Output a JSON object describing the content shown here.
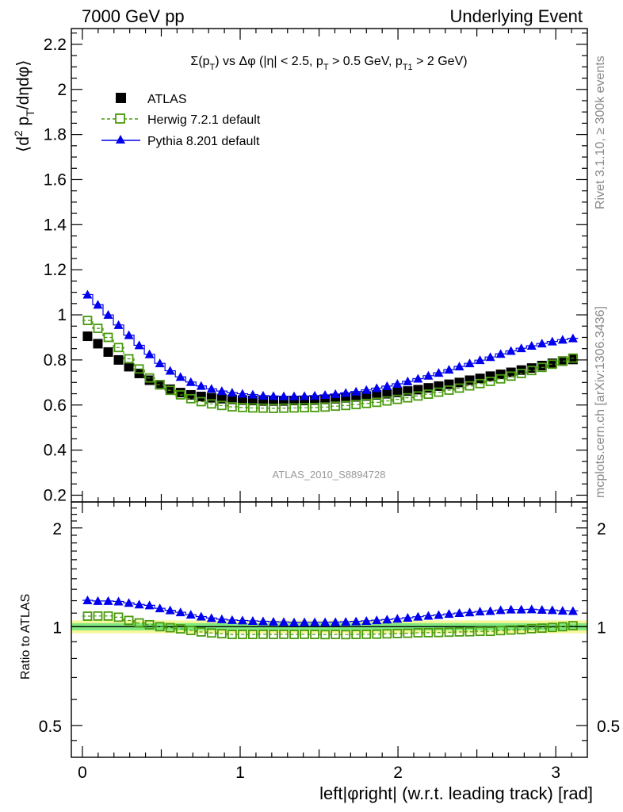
{
  "header": {
    "left": "7000 GeV pp",
    "right": "Underlying Event",
    "side_top": "Rivet 3.1.10, ≥ 300k events",
    "side_bottom": "mcplots.cern.ch [arXiv:1306.3436]",
    "analysis": "ATLAS_2010_S8894728"
  },
  "chart_data": {
    "type": "scatter",
    "title": "Σ(p_T) vs Δφ (|η| < 2.5, p_T > 0.5 GeV, p_T1 > 2 GeV)",
    "xlabel": "left|φright| (w.r.t. leading track) [rad]",
    "ylabel": "⟨d² p_T/dηdφ⟩",
    "ratio_ylabel": "Ratio to ATLAS",
    "xlim": [
      -0.07,
      3.2
    ],
    "ylim": [
      0.17,
      2.27
    ],
    "ratio_ylim": [
      0.4,
      2.4
    ],
    "ratio_log_scale": true,
    "xticks": [
      0,
      1,
      2,
      3
    ],
    "yticks": [
      0.2,
      0.4,
      0.6,
      0.8,
      1,
      1.2,
      1.4,
      1.6,
      1.8,
      2,
      2.2
    ],
    "ratio_yticks": [
      0.5,
      1,
      2
    ],
    "legend_position": "top-left",
    "ratio_band": {
      "inner": [
        0.975,
        1.025
      ],
      "outer": [
        0.955,
        1.045
      ],
      "inner_color": "#7fe87f",
      "outer_color": "#f7f79a"
    },
    "series": [
      {
        "name": "ATLAS",
        "marker": "filled-square",
        "color": "#000000",
        "x": [
          0.0327,
          0.0982,
          0.1636,
          0.2291,
          0.2945,
          0.36,
          0.4254,
          0.4909,
          0.5563,
          0.6218,
          0.6872,
          0.7527,
          0.8181,
          0.8836,
          0.949,
          1.0145,
          1.0799,
          1.1454,
          1.2108,
          1.2763,
          1.3417,
          1.4072,
          1.4726,
          1.5381,
          1.6035,
          1.669,
          1.7344,
          1.7999,
          1.8653,
          1.9308,
          1.9962,
          2.0617,
          2.1271,
          2.1926,
          2.258,
          2.3235,
          2.3889,
          2.4544,
          2.5198,
          2.5853,
          2.6507,
          2.7162,
          2.7816,
          2.8471,
          2.9125,
          2.978,
          3.0434,
          3.1089
        ],
        "y": [
          0.905,
          0.872,
          0.835,
          0.8,
          0.77,
          0.74,
          0.71,
          0.69,
          0.67,
          0.655,
          0.645,
          0.638,
          0.632,
          0.628,
          0.625,
          0.622,
          0.62,
          0.618,
          0.618,
          0.618,
          0.62,
          0.62,
          0.622,
          0.625,
          0.628,
          0.632,
          0.636,
          0.64,
          0.645,
          0.65,
          0.656,
          0.662,
          0.668,
          0.676,
          0.684,
          0.692,
          0.7,
          0.71,
          0.718,
          0.728,
          0.736,
          0.745,
          0.755,
          0.764,
          0.775,
          0.785,
          0.795,
          0.802
        ]
      },
      {
        "name": "Herwig 7.2.1 default",
        "marker": "open-square",
        "color": "#4a9a0e",
        "x": [
          0.0327,
          0.0982,
          0.1636,
          0.2291,
          0.2945,
          0.36,
          0.4254,
          0.4909,
          0.5563,
          0.6218,
          0.6872,
          0.7527,
          0.8181,
          0.8836,
          0.949,
          1.0145,
          1.0799,
          1.1454,
          1.2108,
          1.2763,
          1.3417,
          1.4072,
          1.4726,
          1.5381,
          1.6035,
          1.669,
          1.7344,
          1.7999,
          1.8653,
          1.9308,
          1.9962,
          2.0617,
          2.1271,
          2.1926,
          2.258,
          2.3235,
          2.3889,
          2.4544,
          2.5198,
          2.5853,
          2.6507,
          2.7162,
          2.7816,
          2.8471,
          2.9125,
          2.978,
          3.0434,
          3.1089
        ],
        "y": [
          0.975,
          0.94,
          0.9,
          0.855,
          0.805,
          0.76,
          0.72,
          0.69,
          0.665,
          0.645,
          0.628,
          0.615,
          0.605,
          0.598,
          0.592,
          0.589,
          0.587,
          0.586,
          0.585,
          0.586,
          0.587,
          0.588,
          0.589,
          0.591,
          0.595,
          0.598,
          0.602,
          0.607,
          0.612,
          0.618,
          0.625,
          0.632,
          0.64,
          0.648,
          0.657,
          0.666,
          0.675,
          0.685,
          0.695,
          0.705,
          0.716,
          0.728,
          0.74,
          0.753,
          0.767,
          0.781,
          0.795,
          0.808
        ]
      },
      {
        "name": "Pythia 8.201 default",
        "marker": "filled-triangle",
        "color": "#0000ee",
        "x": [
          0.0327,
          0.0982,
          0.1636,
          0.2291,
          0.2945,
          0.36,
          0.4254,
          0.4909,
          0.5563,
          0.6218,
          0.6872,
          0.7527,
          0.8181,
          0.8836,
          0.949,
          1.0145,
          1.0799,
          1.1454,
          1.2108,
          1.2763,
          1.3417,
          1.4072,
          1.4726,
          1.5381,
          1.6035,
          1.669,
          1.7344,
          1.7999,
          1.8653,
          1.9308,
          1.9962,
          2.0617,
          2.1271,
          2.1926,
          2.258,
          2.3235,
          2.3889,
          2.4544,
          2.5198,
          2.5853,
          2.6507,
          2.7162,
          2.7816,
          2.8471,
          2.9125,
          2.978,
          3.0434,
          3.1089
        ],
        "y": [
          1.09,
          1.045,
          1.0,
          0.955,
          0.91,
          0.865,
          0.825,
          0.785,
          0.752,
          0.725,
          0.702,
          0.685,
          0.672,
          0.662,
          0.655,
          0.65,
          0.646,
          0.642,
          0.64,
          0.639,
          0.639,
          0.64,
          0.642,
          0.645,
          0.649,
          0.654,
          0.66,
          0.667,
          0.675,
          0.684,
          0.694,
          0.705,
          0.717,
          0.73,
          0.743,
          0.757,
          0.771,
          0.785,
          0.799,
          0.813,
          0.827,
          0.84,
          0.852,
          0.863,
          0.873,
          0.882,
          0.89,
          0.896
        ]
      }
    ],
    "ratios": [
      {
        "name": "Herwig 7.2.1 default",
        "y": [
          1.077,
          1.078,
          1.078,
          1.069,
          1.045,
          1.027,
          1.014,
          1.0,
          0.993,
          0.985,
          0.974,
          0.964,
          0.957,
          0.952,
          0.947,
          0.947,
          0.947,
          0.948,
          0.947,
          0.948,
          0.947,
          0.948,
          0.947,
          0.946,
          0.947,
          0.946,
          0.947,
          0.948,
          0.949,
          0.951,
          0.953,
          0.955,
          0.958,
          0.959,
          0.96,
          0.962,
          0.964,
          0.965,
          0.968,
          0.968,
          0.973,
          0.977,
          0.98,
          0.986,
          0.99,
          0.995,
          1.0,
          1.007
        ]
      },
      {
        "name": "Pythia 8.201 default",
        "y": [
          1.204,
          1.198,
          1.198,
          1.194,
          1.182,
          1.169,
          1.162,
          1.138,
          1.122,
          1.107,
          1.088,
          1.074,
          1.063,
          1.054,
          1.048,
          1.045,
          1.042,
          1.039,
          1.036,
          1.034,
          1.031,
          1.032,
          1.032,
          1.032,
          1.033,
          1.035,
          1.038,
          1.042,
          1.047,
          1.052,
          1.058,
          1.065,
          1.073,
          1.08,
          1.086,
          1.094,
          1.101,
          1.106,
          1.113,
          1.117,
          1.124,
          1.128,
          1.128,
          1.13,
          1.126,
          1.124,
          1.119,
          1.117
        ]
      }
    ]
  }
}
